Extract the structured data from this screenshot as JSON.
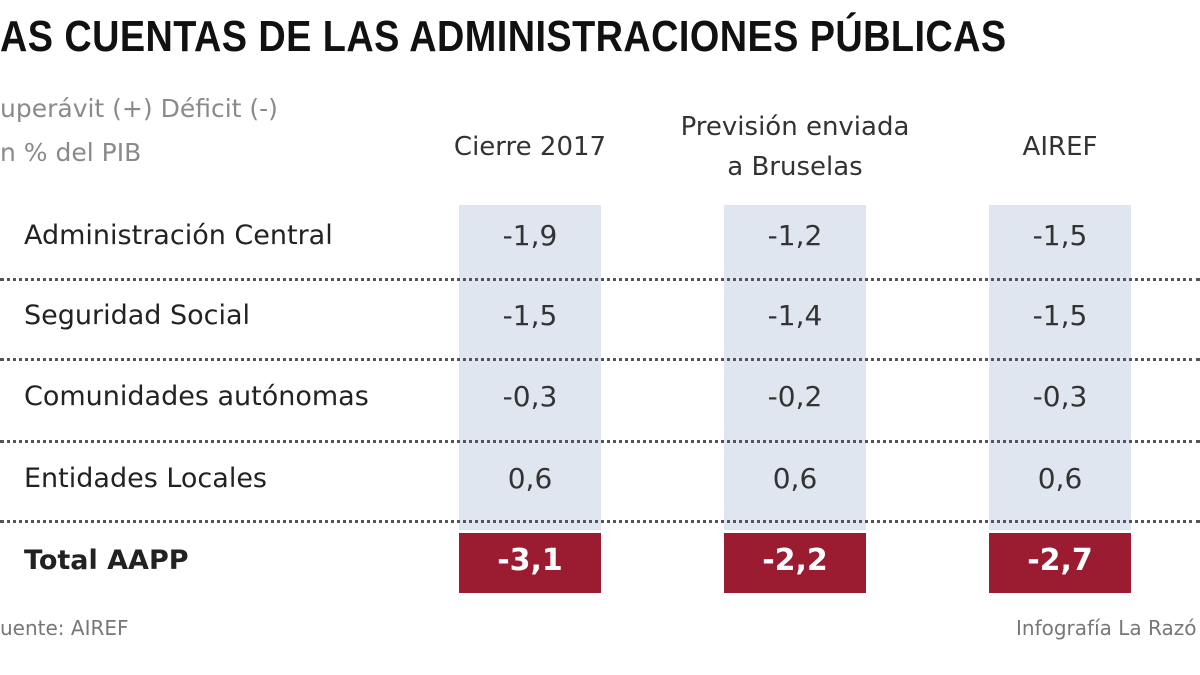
{
  "header": {
    "title": "AS CUENTAS DE LAS ADMINISTRACIONES PÚBLICAS",
    "subtitle": [
      "uperávit (+) Déficit (-)",
      "n % del PIB"
    ]
  },
  "table": {
    "columns": [
      [
        "Cierre 2017"
      ],
      [
        "Previsión enviada",
        "a Bruselas"
      ],
      [
        "AIREF"
      ]
    ],
    "rows": [
      [
        "Administración Central",
        "-1,9",
        "-1,2",
        "-1,5"
      ],
      [
        "Seguridad Social",
        "-1,5",
        "-1,4",
        "-1,5"
      ],
      [
        "Comunidades autónomas",
        "-0,3",
        "-0,2",
        "-0,3"
      ],
      [
        "Entidades Locales",
        "0,6",
        "0,6",
        "0,6"
      ]
    ],
    "total": [
      "Total AAPP",
      "-3,1",
      "-2,2",
      "-2,7"
    ]
  },
  "footer": {
    "source": "uente: AIREF",
    "credit": "Infografía La Razó"
  }
}
